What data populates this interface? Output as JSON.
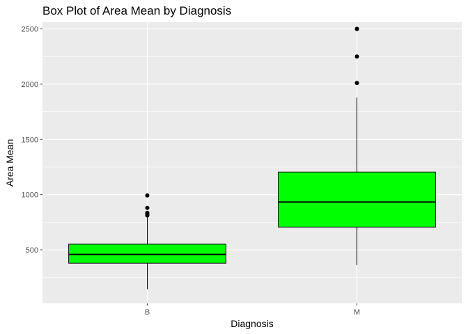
{
  "chart_data": {
    "type": "box",
    "title": "Box Plot of Area Mean by Diagnosis",
    "xlabel": "Diagnosis",
    "ylabel": "Area Mean",
    "categories": [
      "B",
      "M"
    ],
    "ylim": [
      15,
      2560
    ],
    "yticks": [
      500,
      1000,
      1500,
      2000,
      2500
    ],
    "grid": true,
    "box_fill": "#00FF00",
    "panel_background": "#EBEBEB",
    "boxes": [
      {
        "category": "B",
        "min": 143,
        "q1": 379,
        "median": 458,
        "q3": 551,
        "max": 800,
        "outliers": [
          812,
          821,
          835,
          880,
          992
        ]
      },
      {
        "category": "M",
        "min": 362,
        "q1": 706,
        "median": 932,
        "q3": 1204,
        "max": 1878,
        "outliers": [
          2010,
          2250,
          2499,
          2501
        ]
      }
    ]
  }
}
